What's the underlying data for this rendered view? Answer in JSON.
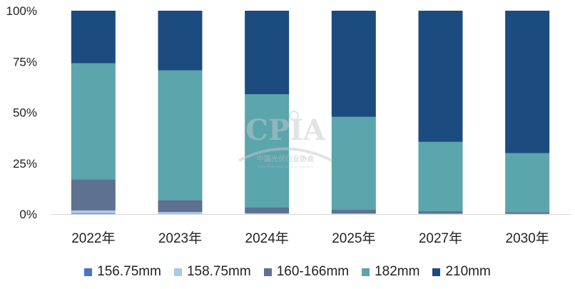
{
  "chart_data": {
    "type": "bar",
    "stacked": true,
    "normalized": true,
    "categories": [
      "2022年",
      "2023年",
      "2024年",
      "2025年",
      "2027年",
      "2030年"
    ],
    "series": [
      {
        "name": "156.75mm",
        "color": "#4a74c4",
        "values": [
          0.3,
          0.1,
          0.0,
          0.0,
          0.0,
          0.0
        ]
      },
      {
        "name": "158.75mm",
        "color": "#a9c8ec",
        "values": [
          1.5,
          0.9,
          0.4,
          0.3,
          0.2,
          0.1
        ]
      },
      {
        "name": "160-166mm",
        "color": "#5e7190",
        "values": [
          15.2,
          5.9,
          3.0,
          1.8,
          1.2,
          0.9
        ]
      },
      {
        "name": "182mm",
        "color": "#5ba5ad",
        "values": [
          57.2,
          63.8,
          55.5,
          45.7,
          34.1,
          29.0
        ]
      },
      {
        "name": "210mm",
        "color": "#1b4b7f",
        "values": [
          25.8,
          29.3,
          41.1,
          52.2,
          64.5,
          70.0
        ]
      }
    ],
    "yticks": [
      "0%",
      "25%",
      "50%",
      "75%",
      "100%"
    ],
    "ylim": [
      0,
      100
    ],
    "legend_position": "bottom",
    "grid": false
  },
  "watermark": {
    "logo_text": "CPIA",
    "org_name_cn": "中国光伏行业协会",
    "org_name_en": "China Photovoltaic Industry Association"
  }
}
